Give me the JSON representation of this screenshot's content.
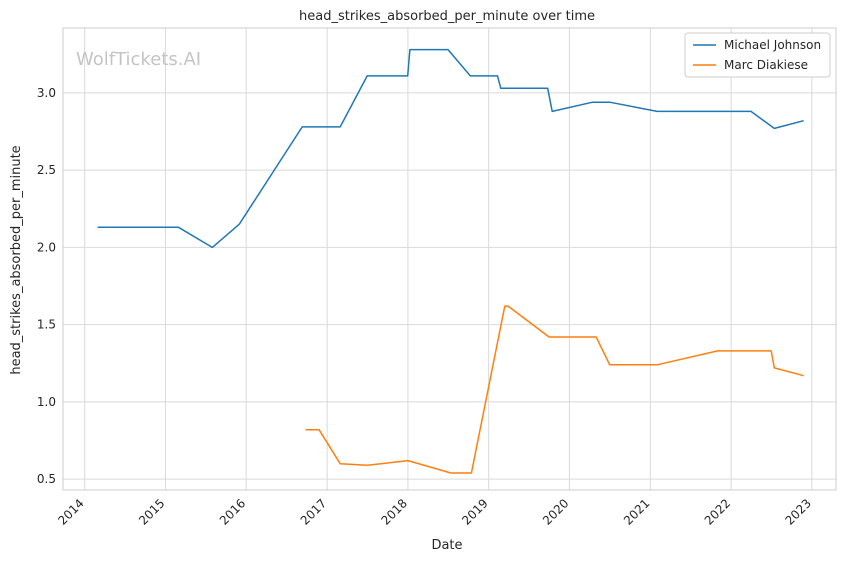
{
  "watermark": "WolfTickets.AI",
  "chart_data": {
    "type": "line",
    "title": "head_strikes_absorbed_per_minute over time",
    "xlabel": "Date",
    "ylabel": "head_strikes_absorbed_per_minute",
    "x_ticks": [
      "2014",
      "2015",
      "2016",
      "2017",
      "2018",
      "2019",
      "2020",
      "2021",
      "2022",
      "2023"
    ],
    "y_ticks": [
      "0.5",
      "1.0",
      "1.5",
      "2.0",
      "2.5",
      "3.0"
    ],
    "xlim": [
      "2013-09-25",
      "2023-04-20"
    ],
    "ylim": [
      0.43,
      3.42
    ],
    "grid": true,
    "legend_position": "top-right",
    "series": [
      {
        "name": "Michael Johnson",
        "color": "#1f77b4",
        "points": [
          [
            "2014-03-01",
            2.13
          ],
          [
            "2015-03-01",
            2.13
          ],
          [
            "2015-08-01",
            2.0
          ],
          [
            "2015-12-01",
            2.15
          ],
          [
            "2016-09-10",
            2.78
          ],
          [
            "2016-10-25",
            2.78
          ],
          [
            "2017-03-01",
            2.78
          ],
          [
            "2017-07-01",
            3.11
          ],
          [
            "2017-12-31",
            3.11
          ],
          [
            "2018-01-10",
            3.28
          ],
          [
            "2018-07-01",
            3.28
          ],
          [
            "2018-10-10",
            3.11
          ],
          [
            "2019-02-10",
            3.11
          ],
          [
            "2019-02-25",
            3.03
          ],
          [
            "2019-09-25",
            3.03
          ],
          [
            "2019-10-15",
            2.88
          ],
          [
            "2020-04-15",
            2.94
          ],
          [
            "2020-07-01",
            2.94
          ],
          [
            "2021-02-01",
            2.88
          ],
          [
            "2022-04-01",
            2.88
          ],
          [
            "2022-07-15",
            2.77
          ],
          [
            "2022-11-25",
            2.82
          ]
        ]
      },
      {
        "name": "Marc Diakiese",
        "color": "#ff7f0e",
        "points": [
          [
            "2016-09-25",
            0.82
          ],
          [
            "2016-11-25",
            0.82
          ],
          [
            "2017-03-01",
            0.6
          ],
          [
            "2017-07-01",
            0.59
          ],
          [
            "2018-01-01",
            0.62
          ],
          [
            "2018-07-15",
            0.54
          ],
          [
            "2018-10-15",
            0.54
          ],
          [
            "2019-03-15",
            1.62
          ],
          [
            "2019-03-30",
            1.62
          ],
          [
            "2019-10-01",
            1.42
          ],
          [
            "2020-05-01",
            1.42
          ],
          [
            "2020-07-01",
            1.24
          ],
          [
            "2021-02-01",
            1.24
          ],
          [
            "2021-11-01",
            1.33
          ],
          [
            "2022-04-01",
            1.33
          ],
          [
            "2022-07-01",
            1.33
          ],
          [
            "2022-07-15",
            1.22
          ],
          [
            "2022-11-25",
            1.17
          ]
        ]
      }
    ]
  }
}
